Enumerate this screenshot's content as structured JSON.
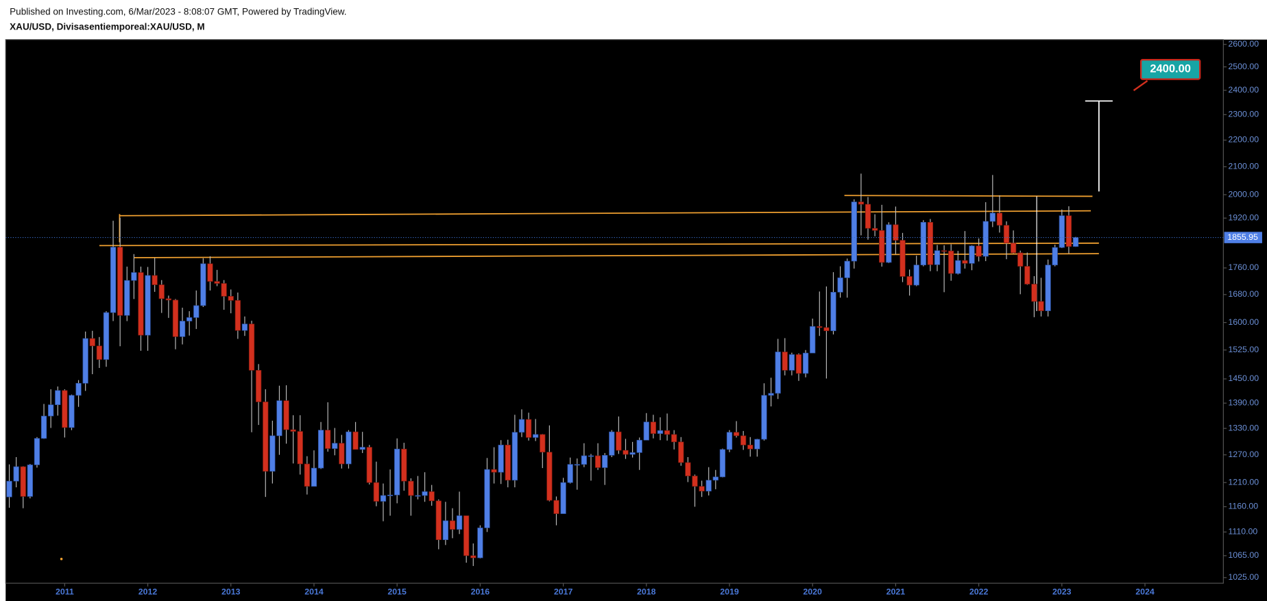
{
  "header": {
    "published": "Published on Investing.com, 6/Mar/2023 - 8:08:07 GMT, Powered by TradingView.",
    "symbol": "XAU/USD, Divisasentiemporeal:XAU/USD, M"
  },
  "chart_data": {
    "type": "candlestick",
    "log_scale": true,
    "up_color": "#4f7fe6",
    "down_color": "#d3301e",
    "categories": [
      null,
      null,
      null,
      null,
      null,
      null,
      null,
      null,
      "2011",
      null,
      null,
      null,
      null,
      null,
      null,
      null,
      null,
      null,
      null,
      null,
      "2012",
      null,
      null,
      null,
      null,
      null,
      null,
      null,
      null,
      null,
      null,
      null,
      "2013",
      null,
      null,
      null,
      null,
      null,
      null,
      null,
      null,
      null,
      null,
      null,
      "2014",
      null,
      null,
      null,
      null,
      null,
      null,
      null,
      null,
      null,
      null,
      null,
      "2015",
      null,
      null,
      null,
      null,
      null,
      null,
      null,
      null,
      null,
      null,
      null,
      "2016",
      null,
      null,
      null,
      null,
      null,
      null,
      null,
      null,
      null,
      null,
      null,
      "2017",
      null,
      null,
      null,
      null,
      null,
      null,
      null,
      null,
      null,
      null,
      null,
      "2018",
      null,
      null,
      null,
      null,
      null,
      null,
      null,
      null,
      null,
      null,
      null,
      "2019",
      null,
      null,
      null,
      null,
      null,
      null,
      null,
      null,
      null,
      null,
      null,
      "2020",
      null,
      null,
      null,
      null,
      null,
      null,
      null,
      null,
      null,
      null,
      null,
      "2021",
      null,
      null,
      null,
      null,
      null,
      null,
      null,
      null,
      null,
      null,
      null,
      "2022",
      null,
      null,
      null,
      null,
      null,
      null,
      null,
      null,
      null,
      null,
      null,
      "2023",
      null,
      null,
      null,
      null,
      null,
      null,
      null,
      null,
      null,
      null,
      null,
      "2024",
      null,
      null,
      null,
      null,
      null,
      null,
      null,
      null,
      null,
      null,
      null
    ],
    "open": [
      1180,
      1213,
      1244,
      1181,
      1248,
      1307,
      1359,
      1386,
      1421,
      1332,
      1409,
      1439,
      1556,
      1536,
      1500,
      1628,
      1825,
      1620,
      1722,
      1746,
      1565,
      1737,
      1709,
      1668,
      1664,
      1561,
      1604,
      1614,
      1648,
      1773,
      1719,
      1713,
      1675,
      1663,
      1578,
      1596,
      1472,
      1393,
      1234,
      1313,
      1396,
      1327,
      1323,
      1250,
      1202,
      1241,
      1326,
      1284,
      1296,
      1250,
      1322,
      1282,
      1287,
      1210,
      1171,
      1183,
      1184,
      1283,
      1213,
      1183,
      1183,
      1191,
      1172,
      1095,
      1132,
      1115,
      1142,
      1065,
      1061,
      1118,
      1238,
      1232,
      1292,
      1215,
      1321,
      1351,
      1309,
      1316,
      1276,
      1173,
      1146,
      1210,
      1249,
      1249,
      1268,
      1268,
      1242,
      1269,
      1322,
      1280,
      1271,
      1275,
      1303,
      1345,
      1318,
      1325,
      1316,
      1299,
      1253,
      1224,
      1202,
      1192,
      1215,
      1222,
      1282,
      1321,
      1313,
      1292,
      1283,
      1305,
      1409,
      1414,
      1520,
      1472,
      1513,
      1464,
      1517,
      1589,
      1586,
      1577,
      1687,
      1730,
      1781,
      1975,
      1967,
      1886,
      1879,
      1777,
      1898,
      1847,
      1734,
      1708,
      1769,
      1906,
      1770,
      1814,
      1813,
      1743,
      1783,
      1774,
      1829,
      1796,
      1909,
      1937,
      1896,
      1838,
      1807,
      1765,
      1711,
      1660,
      1633,
      1769,
      1824,
      1928,
      1827,
      null,
      null,
      null,
      null,
      null,
      null,
      null,
      null,
      null,
      null,
      null,
      null,
      null,
      null,
      null,
      null,
      null,
      null,
      null,
      null,
      null
    ],
    "high": [
      1249,
      1265,
      1245,
      1250,
      1310,
      1388,
      1424,
      1431,
      1424,
      1411,
      1447,
      1575,
      1577,
      1560,
      1632,
      1911,
      1921,
      1764,
      1803,
      1764,
      1763,
      1791,
      1723,
      1677,
      1667,
      1642,
      1632,
      1692,
      1790,
      1796,
      1754,
      1723,
      1695,
      1686,
      1617,
      1605,
      1488,
      1424,
      1348,
      1433,
      1434,
      1361,
      1361,
      1267,
      1280,
      1345,
      1392,
      1331,
      1315,
      1326,
      1345,
      1322,
      1292,
      1255,
      1208,
      1238,
      1307,
      1297,
      1219,
      1224,
      1232,
      1205,
      1175,
      1170,
      1157,
      1191,
      1142,
      1088,
      1123,
      1263,
      1287,
      1303,
      1304,
      1362,
      1375,
      1367,
      1352,
      1317,
      1337,
      1181,
      1220,
      1264,
      1262,
      1296,
      1272,
      1296,
      1274,
      1326,
      1358,
      1306,
      1299,
      1309,
      1366,
      1362,
      1356,
      1365,
      1326,
      1310,
      1265,
      1227,
      1214,
      1243,
      1237,
      1284,
      1326,
      1347,
      1324,
      1310,
      1306,
      1439,
      1453,
      1555,
      1557,
      1518,
      1516,
      1525,
      1611,
      1689,
      1704,
      1747,
      1765,
      1789,
      1984,
      2075,
      1992,
      1933,
      1965,
      1906,
      1959,
      1871,
      1755,
      1798,
      1913,
      1917,
      1832,
      1831,
      1834,
      1813,
      1877,
      1831,
      1853,
      1974,
      2070,
      1998,
      1909,
      1879,
      1814,
      1808,
      1735,
      1730,
      1786,
      1833,
      1949,
      1960,
      1858,
      null,
      null,
      null,
      null,
      null,
      null,
      null,
      null,
      null,
      null,
      null,
      null,
      null,
      null,
      null,
      null,
      null,
      null,
      null,
      null,
      null
    ],
    "low": [
      1158,
      1200,
      1157,
      1177,
      1242,
      1306,
      1331,
      1360,
      1309,
      1326,
      1381,
      1420,
      1462,
      1478,
      1481,
      1604,
      1535,
      1604,
      1667,
      1523,
      1523,
      1688,
      1627,
      1613,
      1527,
      1540,
      1564,
      1582,
      1644,
      1692,
      1705,
      1636,
      1626,
      1555,
      1563,
      1321,
      1338,
      1180,
      1208,
      1270,
      1295,
      1251,
      1227,
      1185,
      1202,
      1239,
      1277,
      1269,
      1240,
      1240,
      1282,
      1274,
      1206,
      1161,
      1131,
      1142,
      1167,
      1193,
      1142,
      1175,
      1170,
      1162,
      1077,
      1085,
      1098,
      1106,
      1052,
      1046,
      1060,
      1110,
      1208,
      1207,
      1200,
      1200,
      1310,
      1302,
      1301,
      1241,
      1171,
      1123,
      1146,
      1208,
      1195,
      1243,
      1214,
      1237,
      1205,
      1265,
      1272,
      1261,
      1264,
      1237,
      1303,
      1307,
      1303,
      1302,
      1282,
      1246,
      1211,
      1160,
      1180,
      1183,
      1196,
      1221,
      1276,
      1309,
      1281,
      1266,
      1266,
      1302,
      1382,
      1400,
      1459,
      1459,
      1445,
      1454,
      1517,
      1563,
      1451,
      1567,
      1671,
      1671,
      1758,
      1863,
      1849,
      1860,
      1764,
      1775,
      1802,
      1717,
      1677,
      1705,
      1765,
      1750,
      1750,
      1687,
      1721,
      1740,
      1758,
      1753,
      1780,
      1781,
      1890,
      1872,
      1787,
      1805,
      1681,
      1709,
      1615,
      1617,
      1617,
      1765,
      1822,
      1805,
      1826,
      null,
      null,
      null,
      null,
      null,
      null,
      null,
      null,
      null,
      null,
      null,
      null,
      null,
      null,
      null,
      null,
      null,
      null,
      null,
      null,
      null
    ],
    "close": [
      1213,
      1244,
      1181,
      1248,
      1307,
      1359,
      1386,
      1421,
      1332,
      1409,
      1439,
      1556,
      1536,
      1500,
      1628,
      1825,
      1620,
      1722,
      1746,
      1565,
      1737,
      1709,
      1668,
      1664,
      1561,
      1604,
      1614,
      1648,
      1773,
      1719,
      1713,
      1675,
      1663,
      1578,
      1596,
      1472,
      1393,
      1234,
      1313,
      1396,
      1327,
      1323,
      1250,
      1202,
      1241,
      1326,
      1284,
      1296,
      1250,
      1322,
      1282,
      1287,
      1210,
      1171,
      1183,
      1184,
      1283,
      1213,
      1183,
      1183,
      1191,
      1172,
      1095,
      1132,
      1115,
      1142,
      1065,
      1061,
      1118,
      1238,
      1232,
      1292,
      1215,
      1321,
      1351,
      1309,
      1316,
      1276,
      1173,
      1146,
      1210,
      1249,
      1249,
      1268,
      1268,
      1242,
      1269,
      1322,
      1280,
      1271,
      1275,
      1303,
      1345,
      1318,
      1325,
      1316,
      1299,
      1253,
      1224,
      1202,
      1192,
      1215,
      1222,
      1282,
      1321,
      1313,
      1292,
      1283,
      1305,
      1409,
      1414,
      1520,
      1472,
      1513,
      1464,
      1517,
      1589,
      1586,
      1577,
      1687,
      1730,
      1781,
      1975,
      1967,
      1886,
      1879,
      1777,
      1898,
      1847,
      1734,
      1708,
      1769,
      1906,
      1770,
      1814,
      1813,
      1743,
      1783,
      1774,
      1829,
      1796,
      1909,
      1937,
      1896,
      1838,
      1807,
      1765,
      1711,
      1660,
      1633,
      1769,
      1824,
      1928,
      1827,
      1855.95,
      null,
      null,
      null,
      null,
      null,
      null,
      null,
      null,
      null,
      null,
      null,
      null,
      null,
      null,
      null,
      null,
      null,
      null,
      null,
      null,
      null
    ],
    "ylim": [
      1015,
      2622
    ],
    "yticks": [
      {
        "value": 1025,
        "label": "1025.00"
      },
      {
        "value": 1065,
        "label": "1065.00"
      },
      {
        "value": 1110,
        "label": "1110.00"
      },
      {
        "value": 1160,
        "label": "1160.00"
      },
      {
        "value": 1210,
        "label": "1210.00"
      },
      {
        "value": 1270,
        "label": "1270.00"
      },
      {
        "value": 1330,
        "label": "1330.00"
      },
      {
        "value": 1390,
        "label": "1390.00"
      },
      {
        "value": 1450,
        "label": "1450.00"
      },
      {
        "value": 1525,
        "label": "1525.00"
      },
      {
        "value": 1600,
        "label": "1600.00"
      },
      {
        "value": 1680,
        "label": "1680.00"
      },
      {
        "value": 1760,
        "label": "1760.00"
      },
      {
        "value": 1920,
        "label": "1920.00"
      },
      {
        "value": 2000,
        "label": "2000.00"
      },
      {
        "value": 2100,
        "label": "2100.00"
      },
      {
        "value": 2200,
        "label": "2200.00"
      },
      {
        "value": 2300,
        "label": "2300.00"
      },
      {
        "value": 2400,
        "label": "2400.00"
      },
      {
        "value": 2500,
        "label": "2500.00"
      },
      {
        "value": 2600,
        "label": "2600.00"
      }
    ],
    "last_price": {
      "value": 1855.95,
      "label": "1855.95"
    },
    "callout": "2400.00"
  }
}
